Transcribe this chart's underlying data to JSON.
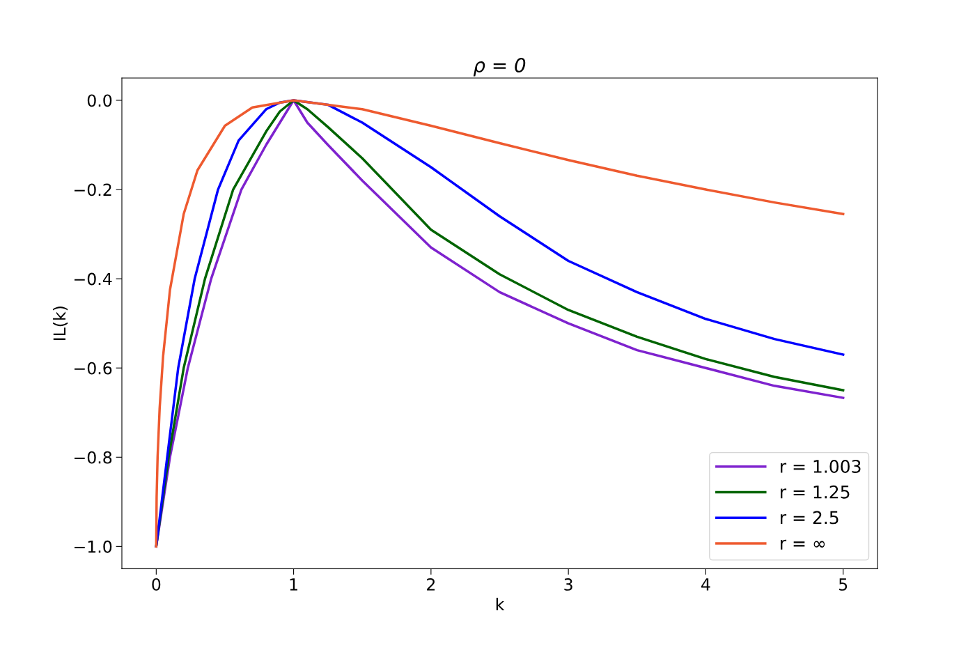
{
  "chart_data": {
    "type": "line",
    "title": "ρ = 0",
    "xlabel": "k",
    "ylabel": "IL(k)",
    "xlim": [
      -0.25,
      5.25
    ],
    "ylim": [
      -1.05,
      0.05
    ],
    "xticks": [
      0,
      1,
      2,
      3,
      4,
      5
    ],
    "yticks": [
      {
        "value": 0.0,
        "label": "0.0"
      },
      {
        "value": -0.2,
        "label": "−0.2"
      },
      {
        "value": -0.4,
        "label": "−0.4"
      },
      {
        "value": -0.6,
        "label": "−0.6"
      },
      {
        "value": -0.8,
        "label": "−0.8"
      },
      {
        "value": -1.0,
        "label": "−1.0"
      }
    ],
    "grid": false,
    "legend": "bottom right",
    "marker": "none",
    "line_style": "solid",
    "series": [
      {
        "name": "r = 1.003",
        "color": "#7e22ce",
        "x": [
          0,
          0.1,
          0.23,
          0.4,
          0.62,
          0.8,
          0.9,
          1,
          1.1,
          1.25,
          1.5,
          2,
          2.5,
          3,
          3.5,
          4,
          4.5,
          5
        ],
        "values": [
          -1,
          -0.8,
          -0.6,
          -0.4,
          -0.2,
          -0.1,
          -0.05,
          0,
          -0.05,
          -0.1,
          -0.18,
          -0.33,
          -0.43,
          -0.5,
          -0.56,
          -0.6,
          -0.64,
          -0.667
        ]
      },
      {
        "name": "r = 1.25",
        "color": "#006400",
        "x": [
          0,
          0.09,
          0.2,
          0.355,
          0.56,
          0.8,
          0.9,
          1,
          1.1,
          1.25,
          1.5,
          2,
          2.5,
          3,
          3.5,
          4,
          4.5,
          5
        ],
        "values": [
          -1,
          -0.8,
          -0.6,
          -0.4,
          -0.2,
          -0.07,
          -0.025,
          0,
          -0.02,
          -0.06,
          -0.13,
          -0.29,
          -0.39,
          -0.47,
          -0.53,
          -0.58,
          -0.62,
          -0.65
        ]
      },
      {
        "name": "r = 2.5",
        "color": "#0000ff",
        "x": [
          0,
          0.08,
          0.16,
          0.28,
          0.45,
          0.6,
          0.8,
          0.9,
          1,
          1.25,
          1.5,
          2,
          2.5,
          3,
          3.5,
          4,
          4.5,
          5
        ],
        "values": [
          -1,
          -0.8,
          -0.6,
          -0.4,
          -0.2,
          -0.09,
          -0.02,
          -0.005,
          0,
          -0.01,
          -0.05,
          -0.15,
          -0.26,
          -0.36,
          -0.43,
          -0.49,
          -0.535,
          -0.57
        ]
      },
      {
        "name": "r = ∞",
        "color": "#ee5a2f",
        "x": [
          0,
          0.003,
          0.01,
          0.025,
          0.05,
          0.1,
          0.2,
          0.3,
          0.5,
          0.7,
          1,
          1.5,
          2,
          2.5,
          3,
          3.5,
          4,
          4.5,
          5
        ],
        "values": [
          -1,
          -0.89,
          -0.8,
          -0.69,
          -0.574,
          -0.425,
          -0.255,
          -0.157,
          -0.057,
          -0.016,
          0,
          -0.02,
          -0.057,
          -0.096,
          -0.134,
          -0.169,
          -0.2,
          -0.229,
          -0.255
        ]
      }
    ]
  }
}
